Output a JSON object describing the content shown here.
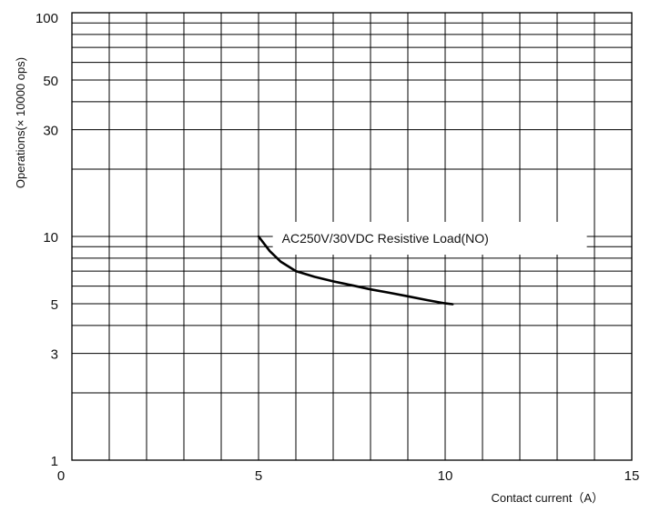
{
  "chart_data": {
    "type": "line",
    "title": "",
    "xlabel": "Contact current（A）",
    "ylabel": "Operations(× 10000 ops)",
    "xlim": [
      0,
      15
    ],
    "ylim": [
      1,
      100
    ],
    "y_scale": "log",
    "grid": true,
    "x_ticks": [
      0,
      5,
      10,
      15
    ],
    "x_tick_labels": [
      "0",
      "5",
      "10",
      "15"
    ],
    "y_ticks": [
      1,
      3,
      5,
      10,
      30,
      50,
      100
    ],
    "y_tick_labels": [
      "1",
      "3",
      "5",
      "10",
      "30",
      "50",
      "100"
    ],
    "series": [
      {
        "x": [
          5.0,
          5.3,
          5.6,
          6.0,
          6.5,
          7.0,
          7.5,
          8.0,
          8.5,
          9.0,
          9.5,
          10.0,
          10.2
        ],
        "y": [
          10.0,
          8.6,
          7.7,
          7.0,
          6.6,
          6.3,
          6.05,
          5.8,
          5.6,
          5.4,
          5.2,
          5.02,
          4.98
        ]
      }
    ],
    "annotations": [
      {
        "text": "AC250V/30VDC  Resistive Load(NO)"
      }
    ]
  }
}
